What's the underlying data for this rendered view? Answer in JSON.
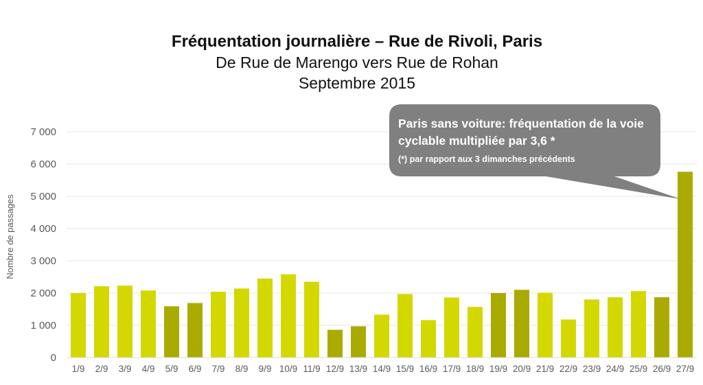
{
  "header": {
    "title": "Fréquentation journalière – Rue de Rivoli, Paris",
    "subtitle1": "De Rue de Marengo vers Rue de Rohan",
    "subtitle2": "Septembre 2015"
  },
  "callout": {
    "text_main": "Paris sans voiture: fréquentation de la voie cyclable multipliée par 3,6 *",
    "text_note": "(*) par rapport aux 3 dimanches précédents",
    "color": "#808080"
  },
  "colors": {
    "weekday": "#d3d800",
    "weekend": "#aaab00",
    "grid": "#e6e6e6",
    "axis": "#d9d9d9"
  },
  "chart_data": {
    "type": "bar",
    "title": "Fréquentation journalière – Rue de Rivoli, Paris",
    "ylabel": "Nombre de passages",
    "ylim": [
      0,
      7000
    ],
    "yticks": [
      "0",
      "1 000",
      "2 000",
      "3 000",
      "4 000",
      "5 000",
      "6 000",
      "7 000"
    ],
    "grid": true,
    "categories": [
      "1/9",
      "2/9",
      "3/9",
      "4/9",
      "5/9",
      "6/9",
      "7/9",
      "8/9",
      "9/9",
      "10/9",
      "11/9",
      "12/9",
      "13/9",
      "14/9",
      "15/9",
      "16/9",
      "17/9",
      "18/9",
      "19/9",
      "20/9",
      "21/9",
      "22/9",
      "23/9",
      "24/9",
      "25/9",
      "26/9",
      "27/9"
    ],
    "values": [
      2000,
      2210,
      2230,
      2080,
      1590,
      1690,
      2040,
      2140,
      2450,
      2580,
      2350,
      860,
      970,
      1330,
      1970,
      1160,
      1860,
      1570,
      2000,
      2100,
      2010,
      1180,
      1800,
      1870,
      2060,
      1870,
      5760
    ],
    "weekend": [
      false,
      false,
      false,
      false,
      true,
      true,
      false,
      false,
      false,
      false,
      false,
      true,
      true,
      false,
      false,
      false,
      false,
      false,
      true,
      true,
      false,
      false,
      false,
      false,
      false,
      true,
      true
    ]
  }
}
